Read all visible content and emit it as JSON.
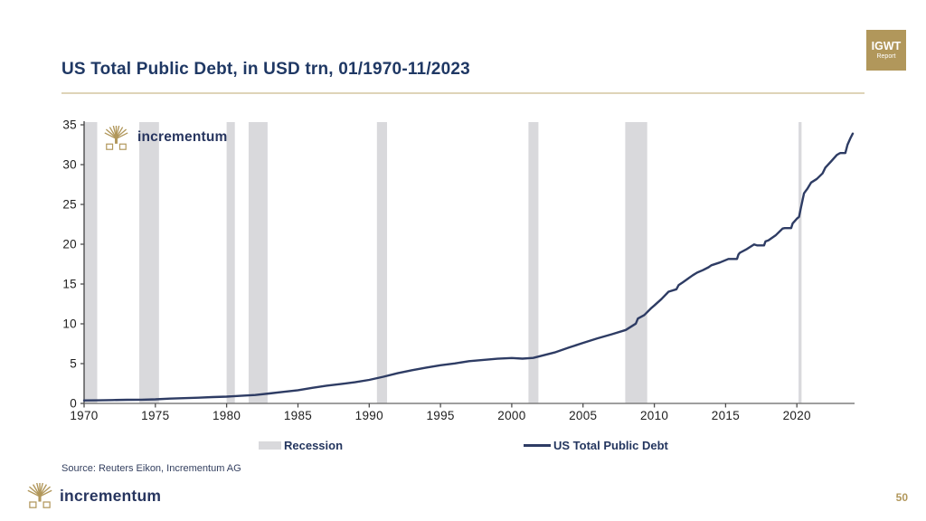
{
  "slide": {
    "title": "US Total Public Debt, in USD trn, 01/1970-11/2023",
    "page_number": "50",
    "source_note": "Source: Reuters Eikon, Incrementum AG",
    "brand_name": "incrementum",
    "badge": {
      "line1": "IGWT",
      "line2": "Report"
    }
  },
  "legend": {
    "recession_label": "Recession",
    "series_label": "US Total Public Debt"
  },
  "colors": {
    "title_navy": "#1f3864",
    "brand_navy": "#27355f",
    "line_navy": "#2e3c64",
    "gold": "#b1975b",
    "rule_tan": "#ded4b8",
    "recession_gray": "#d9d9dc",
    "axis_gray": "#7f7f7f"
  },
  "chart_data": {
    "type": "line",
    "title": "US Total Public Debt, in USD trn, 01/1970-11/2023",
    "xlabel": "",
    "ylabel": "",
    "x_range": [
      1970,
      2023.92
    ],
    "y_range": [
      0,
      35
    ],
    "x_ticks": [
      1970,
      1975,
      1980,
      1985,
      1990,
      1995,
      2000,
      2005,
      2010,
      2015,
      2020
    ],
    "y_ticks": [
      0,
      5,
      10,
      15,
      20,
      25,
      30,
      35
    ],
    "grid": false,
    "legend_position": "bottom",
    "recession_color": "#d9d9dc",
    "recessions": [
      [
        1970.0,
        1970.92
      ],
      [
        1973.87,
        1975.25
      ],
      [
        1980.0,
        1980.58
      ],
      [
        1981.54,
        1982.87
      ],
      [
        1990.54,
        1991.25
      ],
      [
        2001.17,
        2001.87
      ],
      [
        2007.96,
        2009.5
      ],
      [
        2020.12,
        2020.33
      ]
    ],
    "series": [
      {
        "name": "US Total Public Debt",
        "color": "#2e3c64",
        "points": [
          [
            1970.0,
            0.37
          ],
          [
            1971,
            0.39
          ],
          [
            1972,
            0.42
          ],
          [
            1973,
            0.45
          ],
          [
            1974,
            0.47
          ],
          [
            1975,
            0.51
          ],
          [
            1976,
            0.6
          ],
          [
            1977,
            0.66
          ],
          [
            1978,
            0.72
          ],
          [
            1979,
            0.79
          ],
          [
            1980,
            0.85
          ],
          [
            1981,
            0.95
          ],
          [
            1982,
            1.06
          ],
          [
            1983,
            1.25
          ],
          [
            1984,
            1.45
          ],
          [
            1985,
            1.66
          ],
          [
            1986,
            1.95
          ],
          [
            1987,
            2.23
          ],
          [
            1988,
            2.43
          ],
          [
            1989,
            2.66
          ],
          [
            1990,
            2.95
          ],
          [
            1991,
            3.35
          ],
          [
            1992,
            3.8
          ],
          [
            1993,
            4.17
          ],
          [
            1994,
            4.5
          ],
          [
            1995,
            4.8
          ],
          [
            1996,
            5.02
          ],
          [
            1997,
            5.31
          ],
          [
            1998,
            5.47
          ],
          [
            1999,
            5.61
          ],
          [
            2000,
            5.7
          ],
          [
            2000.75,
            5.63
          ],
          [
            2001.5,
            5.72
          ],
          [
            2002,
            5.94
          ],
          [
            2003,
            6.4
          ],
          [
            2004,
            7.01
          ],
          [
            2005,
            7.6
          ],
          [
            2006,
            8.17
          ],
          [
            2007,
            8.68
          ],
          [
            2008,
            9.23
          ],
          [
            2008.7,
            10.02
          ],
          [
            2008.85,
            10.66
          ],
          [
            2009.3,
            11.1
          ],
          [
            2009.8,
            12.0
          ],
          [
            2010,
            12.31
          ],
          [
            2010.5,
            13.1
          ],
          [
            2011,
            14.03
          ],
          [
            2011.55,
            14.34
          ],
          [
            2011.7,
            14.85
          ],
          [
            2012,
            15.22
          ],
          [
            2012.7,
            16.1
          ],
          [
            2013,
            16.43
          ],
          [
            2013.4,
            16.74
          ],
          [
            2013.8,
            17.1
          ],
          [
            2014,
            17.35
          ],
          [
            2014.6,
            17.7
          ],
          [
            2015.2,
            18.15
          ],
          [
            2015.8,
            18.15
          ],
          [
            2015.9,
            18.7
          ],
          [
            2016,
            18.92
          ],
          [
            2016.5,
            19.4
          ],
          [
            2017,
            19.98
          ],
          [
            2017.2,
            19.85
          ],
          [
            2017.7,
            19.85
          ],
          [
            2017.8,
            20.35
          ],
          [
            2018,
            20.49
          ],
          [
            2018.5,
            21.1
          ],
          [
            2019,
            21.97
          ],
          [
            2019.15,
            22.02
          ],
          [
            2019.6,
            22.02
          ],
          [
            2019.7,
            22.6
          ],
          [
            2020,
            23.2
          ],
          [
            2020.15,
            23.44
          ],
          [
            2020.3,
            24.7
          ],
          [
            2020.5,
            26.4
          ],
          [
            2020.75,
            27.0
          ],
          [
            2021,
            27.75
          ],
          [
            2021.4,
            28.2
          ],
          [
            2021.8,
            28.9
          ],
          [
            2022,
            29.62
          ],
          [
            2022.4,
            30.4
          ],
          [
            2022.8,
            31.2
          ],
          [
            2023,
            31.42
          ],
          [
            2023.05,
            31.46
          ],
          [
            2023.4,
            31.46
          ],
          [
            2023.55,
            32.5
          ],
          [
            2023.75,
            33.3
          ],
          [
            2023.92,
            33.9
          ]
        ]
      }
    ]
  }
}
